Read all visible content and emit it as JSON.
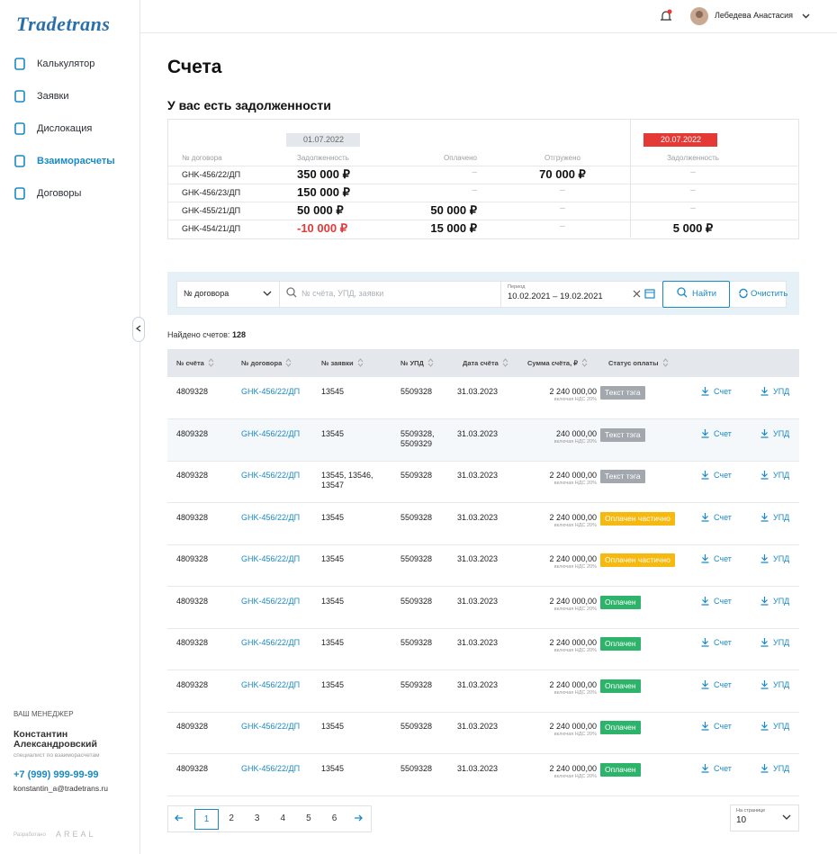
{
  "sidebar": {
    "logo": "Tradetrans",
    "nav": [
      {
        "label": "Калькулятор",
        "active": false
      },
      {
        "label": "Заявки",
        "active": false
      },
      {
        "label": "Дислокация",
        "active": false
      },
      {
        "label": "Взаиморасчеты",
        "active": true
      },
      {
        "label": "Договоры",
        "active": false
      }
    ],
    "manager": {
      "heading": "ВАШ МЕНЕДЖЕР",
      "name": "Константин Александровский",
      "role": "специалист по взаиморасчетам",
      "phone": "+7 (999) 999-99-99",
      "email": "konstantin_a@tradetrans.ru"
    },
    "credit": {
      "label": "Разработано",
      "brand": "AREAL"
    }
  },
  "header": {
    "user": "Лебедева Анастасия"
  },
  "page": {
    "title": "Счета"
  },
  "debts": {
    "title": "У вас есть задолженности",
    "date_start": "01.07.2022",
    "date_end": "20.07.2022",
    "columns": [
      "№ договора",
      "Задолженность",
      "Оплачено",
      "Отгружено",
      "Задолженность"
    ],
    "rows": [
      [
        "GHK-456/22/ДП",
        "350 000 ₽",
        "–",
        "70 000 ₽",
        "–"
      ],
      [
        "GHK-456/23/ДП",
        "150 000 ₽",
        "–",
        "–",
        "–"
      ],
      [
        "GHK-455/21/ДП",
        "50 000 ₽",
        "50 000 ₽",
        "–",
        "–"
      ],
      [
        "GHK-454/21/ДП",
        "-10 000 ₽",
        "15 000 ₽",
        "–",
        "5 000 ₽"
      ]
    ]
  },
  "filters": {
    "contract_select": "№ договора",
    "search_placeholder": "№ счёта, УПД, заявки",
    "period_label": "Период",
    "period": "10.02.2021 – 19.02.2021",
    "find": "Найти",
    "clear": "Очистить"
  },
  "found": {
    "label": "Найдено счетов:",
    "count": 128
  },
  "invoices": {
    "columns": [
      "№ счёта",
      "№ договора",
      "№ заявки",
      "№ УПД",
      "Дата счёта",
      "Сумма счёта, ₽",
      "Статус оплаты"
    ],
    "vat_note": "включая НДС 20%",
    "download_invoice": "Счет",
    "download_upd": "УПД",
    "rows": [
      {
        "invoice": "4809328",
        "contract": "GHK-456/22/ДП",
        "requests": "13545",
        "upd": "5509328",
        "date": "31.03.2023",
        "amount": "2 240 000,00",
        "status": "Текст тэга",
        "status_color": "#a3a8ae"
      },
      {
        "invoice": "4809328",
        "contract": "GHK-456/22/ДП",
        "requests": "13545",
        "upd": "5509328, 5509329",
        "date": "31.03.2023",
        "amount": "240 000,00",
        "status": "Текст тэга",
        "status_color": "#a3a8ae"
      },
      {
        "invoice": "4809328",
        "contract": "GHK-456/22/ДП",
        "requests": "13545, 13546, 13547",
        "upd": "5509328",
        "date": "31.03.2023",
        "amount": "2 240 000,00",
        "status": "Текст тэга",
        "status_color": "#a3a8ae"
      },
      {
        "invoice": "4809328",
        "contract": "GHK-456/22/ДП",
        "requests": "13545",
        "upd": "5509328",
        "date": "31.03.2023",
        "amount": "2 240 000,00",
        "status": "Оплачен частично",
        "status_color": "#f5b90f"
      },
      {
        "invoice": "4809328",
        "contract": "GHK-456/22/ДП",
        "requests": "13545",
        "upd": "5509328",
        "date": "31.03.2023",
        "amount": "2 240 000,00",
        "status": "Оплачен частично",
        "status_color": "#f5b90f"
      },
      {
        "invoice": "4809328",
        "contract": "GHK-456/22/ДП",
        "requests": "13545",
        "upd": "5509328",
        "date": "31.03.2023",
        "amount": "2 240 000,00",
        "status": "Оплачен",
        "status_color": "#2eb36b"
      },
      {
        "invoice": "4809328",
        "contract": "GHK-456/22/ДП",
        "requests": "13545",
        "upd": "5509328",
        "date": "31.03.2023",
        "amount": "2 240 000,00",
        "status": "Оплачен",
        "status_color": "#2eb36b"
      },
      {
        "invoice": "4809328",
        "contract": "GHK-456/22/ДП",
        "requests": "13545",
        "upd": "5509328",
        "date": "31.03.2023",
        "amount": "2 240 000,00",
        "status": "Оплачен",
        "status_color": "#2eb36b"
      },
      {
        "invoice": "4809328",
        "contract": "GHK-456/22/ДП",
        "requests": "13545",
        "upd": "5509328",
        "date": "31.03.2023",
        "amount": "2 240 000,00",
        "status": "Оплачен",
        "status_color": "#2eb36b"
      },
      {
        "invoice": "4809328",
        "contract": "GHK-456/22/ДП",
        "requests": "13545",
        "upd": "5509328",
        "date": "31.03.2023",
        "amount": "2 240 000,00",
        "status": "Оплачен",
        "status_color": "#2eb36b"
      }
    ]
  },
  "pagination": {
    "pages": [
      1,
      2,
      3,
      4,
      5,
      6
    ],
    "current": 1,
    "per_page_label": "На странице",
    "per_page": 10
  }
}
